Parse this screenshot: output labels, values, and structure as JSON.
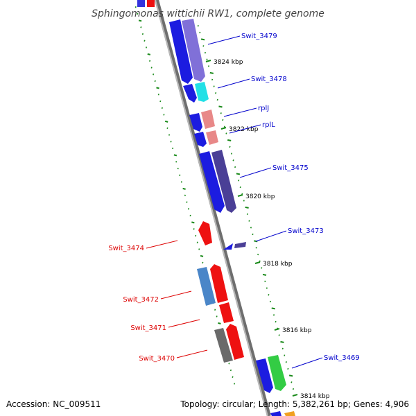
{
  "title": "Sphingomonas wittichii RW1, complete genome",
  "footer": {
    "accession": "Accession: NC_009511",
    "summary": "Topology: circular; Length: 5,382,261 bp; Genes: 4,906"
  },
  "colors": {
    "forward_label": "#0000cc",
    "reverse_label": "#dd0000",
    "backbone": "#8c8c8c",
    "tick": "#1a8a1a"
  },
  "kbp_ticks": [
    "3824 kbp",
    "3822 kbp",
    "3820 kbp",
    "3818 kbp",
    "3816 kbp",
    "3814 kbp"
  ],
  "genes": [
    {
      "name": "Swit_3479",
      "color": "#8070d8"
    },
    {
      "name": "Swit_3478",
      "color": "#22e0e6"
    },
    {
      "name": "rplJ",
      "color": "#e88888"
    },
    {
      "name": "rplL",
      "color": "#e88888"
    },
    {
      "name": "Swit_3475",
      "color": "#4a3f96"
    },
    {
      "name": "Swit_3474",
      "color": "#ee1111"
    },
    {
      "name": "Swit_3473",
      "color": "#4a3f96"
    },
    {
      "name": "Swit_3472",
      "color": "#4a86c8"
    },
    {
      "name": "Swit_3471",
      "color": "#ee1111"
    },
    {
      "name": "Swit_3470",
      "color": "#ee1111"
    },
    {
      "name": "Swit_3469",
      "color": "#33cc44"
    }
  ]
}
